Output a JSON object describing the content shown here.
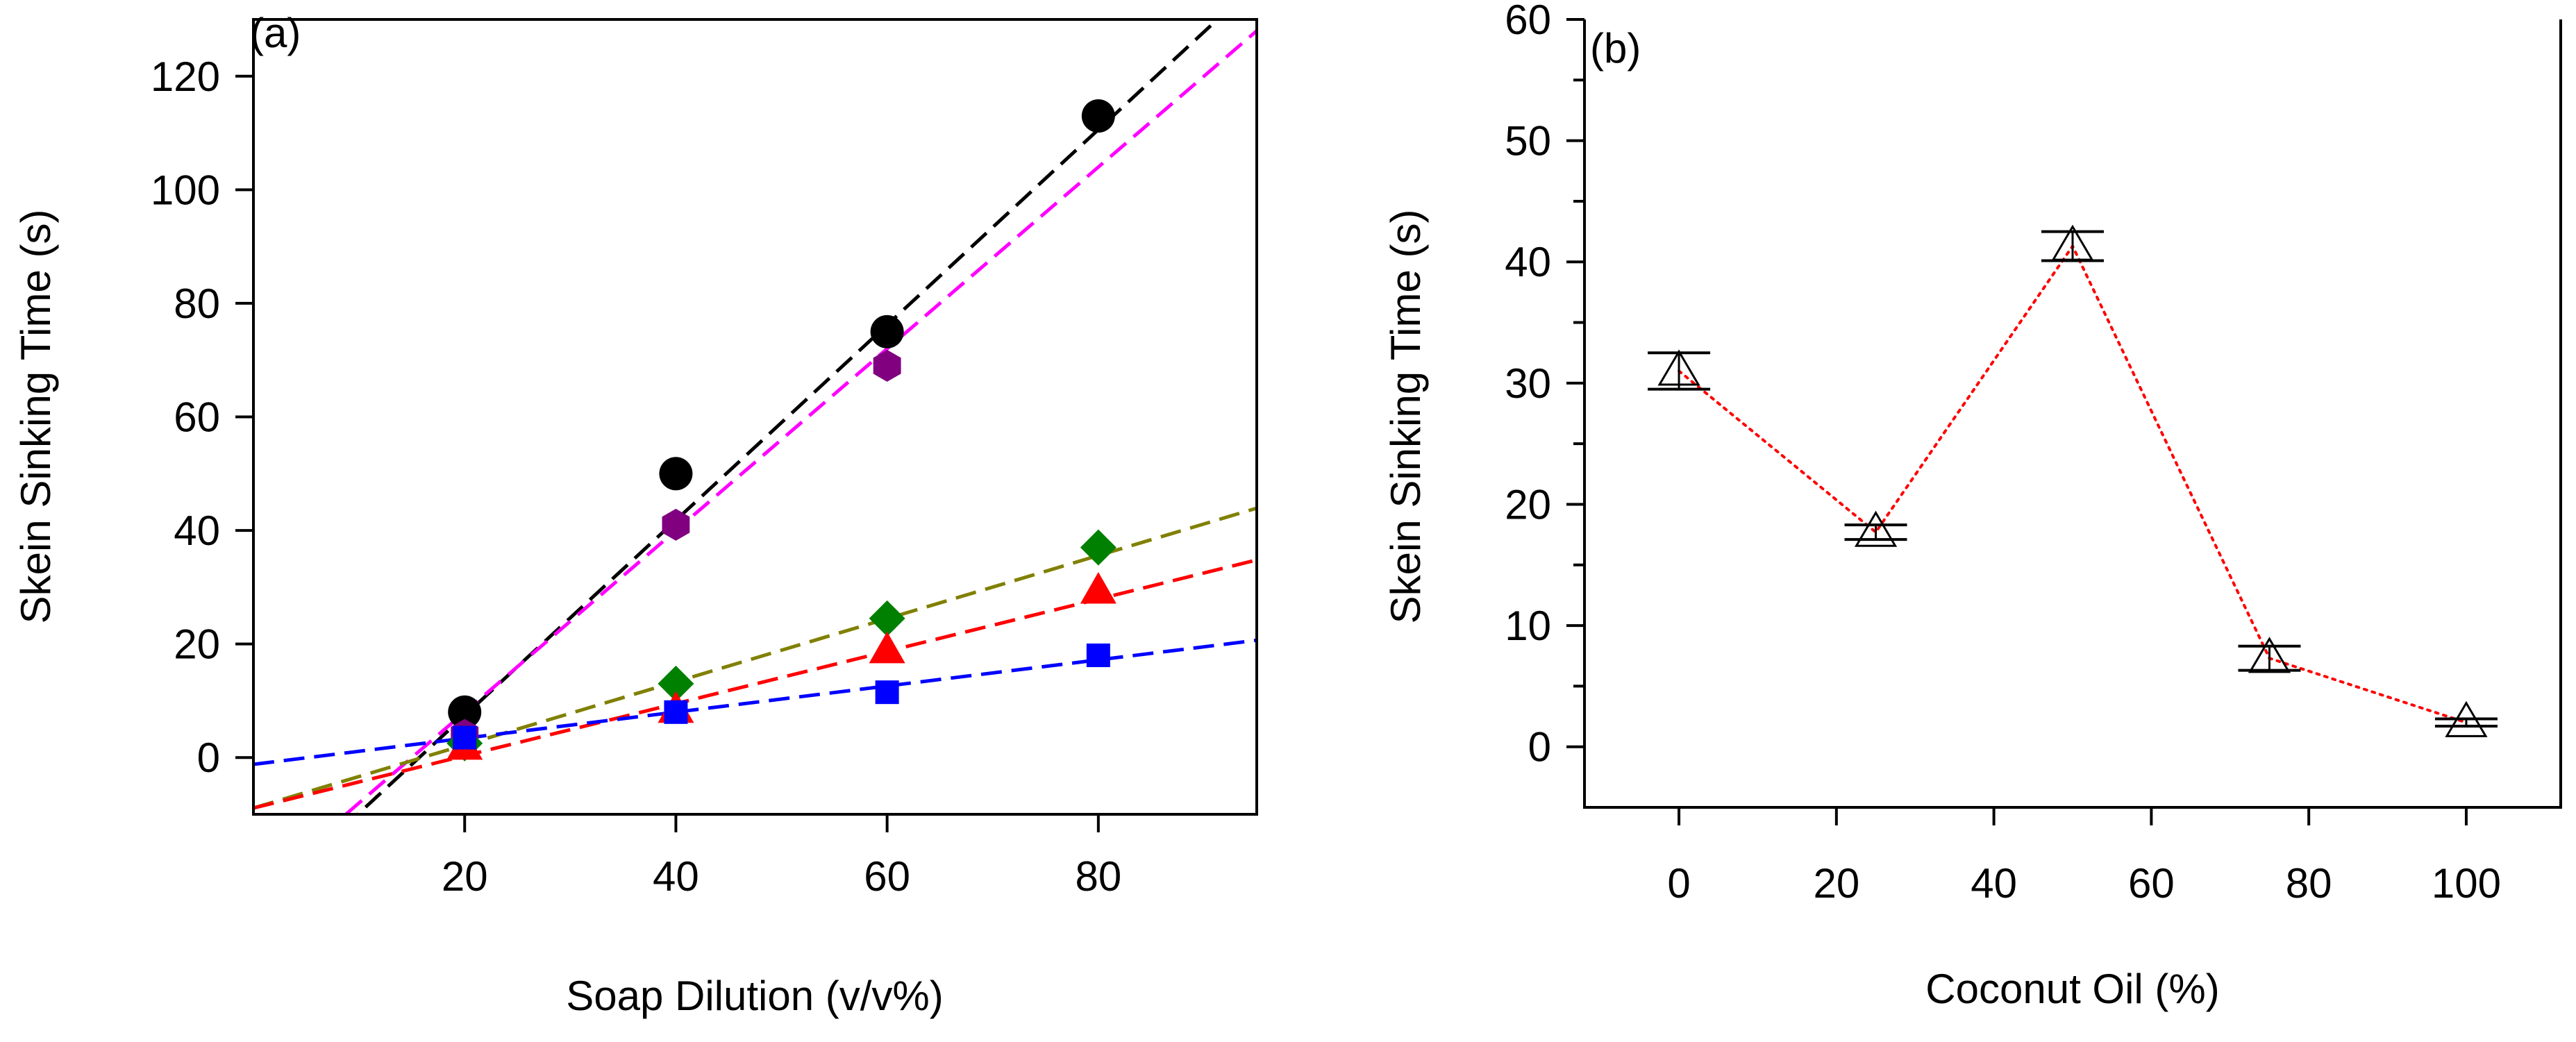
{
  "chart_data": [
    {
      "panel_label": "(a)",
      "type": "scatter",
      "xlabel": "Soap Dilution (v/v%)",
      "ylabel": "Skein Sinking Time (s)",
      "xlim": [
        0,
        95
      ],
      "ylim": [
        -10,
        130
      ],
      "xticks": [
        20,
        40,
        60,
        80
      ],
      "yticks": [
        0,
        20,
        40,
        60,
        80,
        100,
        120
      ],
      "legend": "none",
      "series": [
        {
          "name": "black circles",
          "marker": "circle",
          "color": "#000000",
          "line_color": "#000000",
          "x": [
            20,
            40,
            60,
            80
          ],
          "y": [
            8,
            50,
            75,
            113
          ],
          "fit": {
            "slope": 1.72,
            "intercept": -27
          }
        },
        {
          "name": "purple hexagons",
          "marker": "hexagon",
          "color": "#800080",
          "line_color": "#ff00ff",
          "x": [
            20,
            40,
            60,
            80
          ],
          "y": [
            4,
            41,
            69,
            null
          ],
          "fit": {
            "slope": 1.6,
            "intercept": -24
          }
        },
        {
          "name": "green diamonds",
          "marker": "diamond",
          "color": "#008000",
          "line_color": "#808000",
          "x": [
            20,
            40,
            60,
            80
          ],
          "y": [
            2.5,
            13,
            24.5,
            37
          ],
          "fit": {
            "slope": 0.556,
            "intercept": -8.9
          }
        },
        {
          "name": "red triangles",
          "marker": "triangle",
          "color": "#ff0000",
          "line_color": "#ff0000",
          "x": [
            20,
            40,
            60,
            80
          ],
          "y": [
            2,
            8.5,
            19,
            29.5
          ],
          "fit": {
            "slope": 0.46,
            "intercept": -8.9
          }
        },
        {
          "name": "blue squares",
          "marker": "square",
          "color": "#0000ff",
          "line_color": "#0000ff",
          "x": [
            20,
            40,
            60,
            80
          ],
          "y": [
            3.5,
            8,
            11.5,
            18
          ],
          "fit": {
            "slope": 0.23,
            "intercept": -1.2
          }
        }
      ]
    },
    {
      "panel_label": "(b)",
      "type": "line",
      "xlabel": "Coconut Oil (%)",
      "ylabel": "Skein Sinking Time (s)",
      "xlim": [
        -12,
        112
      ],
      "ylim": [
        -5,
        60
      ],
      "xticks": [
        0,
        20,
        40,
        60,
        80,
        100
      ],
      "yticks": [
        0,
        10,
        20,
        30,
        40,
        50,
        60
      ],
      "legend": "none",
      "series": [
        {
          "name": "sinking time",
          "marker": "open-triangle",
          "color": "#000000",
          "line_color": "#ff0000",
          "line_style": "dotted",
          "x": [
            0,
            25,
            50,
            75,
            100
          ],
          "y": [
            31,
            17.7,
            41.3,
            7.3,
            2
          ],
          "err": [
            1.5,
            0.6,
            1.2,
            1.0,
            0.3
          ]
        }
      ]
    }
  ]
}
